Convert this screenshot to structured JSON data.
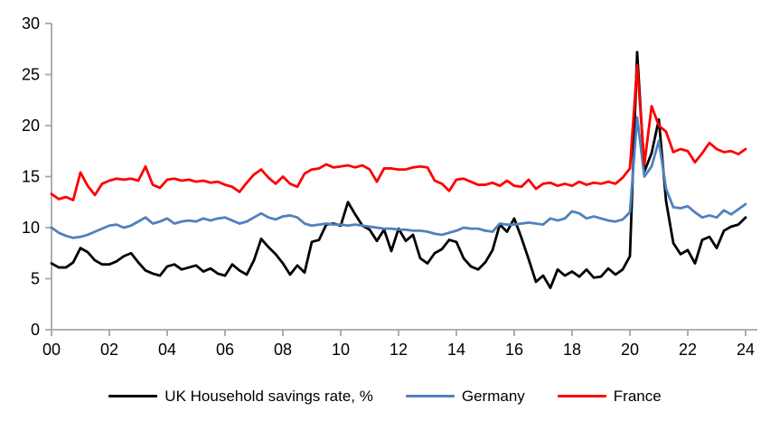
{
  "chart_data": {
    "type": "line",
    "title": "",
    "x_tick_labels": [
      "00",
      "02",
      "04",
      "06",
      "08",
      "10",
      "12",
      "14",
      "16",
      "18",
      "20",
      "22",
      "24"
    ],
    "y_ticks": [
      "0",
      "5",
      "10",
      "15",
      "20",
      "25",
      "30"
    ],
    "ylim": [
      0,
      30
    ],
    "x_start_year": 2000,
    "x_step_years": 0.25,
    "grid": false,
    "legend_position": "bottom",
    "axis_color": "#A6A6A6",
    "tick_label_color": "#000000",
    "series": [
      {
        "name": "UK Household savings rate, %",
        "color": "#000000",
        "values": [
          6.5,
          6.1,
          6.1,
          6.6,
          8.0,
          7.6,
          6.8,
          6.4,
          6.4,
          6.7,
          7.2,
          7.5,
          6.6,
          5.8,
          5.5,
          5.3,
          6.2,
          6.4,
          5.9,
          6.1,
          6.3,
          5.7,
          6.0,
          5.5,
          5.3,
          6.4,
          5.8,
          5.4,
          6.8,
          8.9,
          8.1,
          7.4,
          6.5,
          5.4,
          6.3,
          5.6,
          8.6,
          8.8,
          10.3,
          10.4,
          10.2,
          12.5,
          11.3,
          10.2,
          9.8,
          8.7,
          9.8,
          7.7,
          9.9,
          8.7,
          9.3,
          7.0,
          6.5,
          7.5,
          7.9,
          8.8,
          8.6,
          7.0,
          6.2,
          5.9,
          6.6,
          7.8,
          10.3,
          9.6,
          10.9,
          9.0,
          6.9,
          4.7,
          5.3,
          4.1,
          5.9,
          5.3,
          5.7,
          5.2,
          5.9,
          5.1,
          5.2,
          6.0,
          5.4,
          5.9,
          7.2,
          27.2,
          15.5,
          17.3,
          20.6,
          12.6,
          8.5,
          7.4,
          7.8,
          6.5,
          8.8,
          9.1,
          8.0,
          9.7,
          10.1,
          10.3,
          11.0
        ]
      },
      {
        "name": "Germany",
        "color": "#4F81BD",
        "values": [
          10.0,
          9.5,
          9.2,
          9.0,
          9.1,
          9.3,
          9.6,
          9.9,
          10.2,
          10.3,
          10.0,
          10.2,
          10.6,
          11.0,
          10.4,
          10.6,
          10.9,
          10.4,
          10.6,
          10.7,
          10.6,
          10.9,
          10.7,
          10.9,
          11.0,
          10.7,
          10.4,
          10.6,
          11.0,
          11.4,
          11.0,
          10.8,
          11.1,
          11.2,
          11.0,
          10.4,
          10.2,
          10.3,
          10.4,
          10.3,
          10.3,
          10.2,
          10.3,
          10.2,
          10.1,
          10.0,
          9.9,
          9.9,
          9.8,
          9.8,
          9.7,
          9.7,
          9.6,
          9.4,
          9.3,
          9.5,
          9.7,
          10.0,
          9.9,
          9.9,
          9.7,
          9.6,
          10.4,
          10.3,
          10.3,
          10.4,
          10.5,
          10.4,
          10.3,
          10.9,
          10.7,
          10.9,
          11.6,
          11.4,
          10.9,
          11.1,
          10.9,
          10.7,
          10.6,
          10.8,
          11.5,
          20.8,
          15.0,
          16.0,
          18.5,
          13.8,
          12.0,
          11.9,
          12.1,
          11.5,
          11.0,
          11.2,
          11.0,
          11.7,
          11.3,
          11.8,
          12.3
        ]
      },
      {
        "name": "France",
        "color": "#FF0000",
        "values": [
          13.3,
          12.8,
          13.0,
          12.7,
          15.4,
          14.1,
          13.2,
          14.3,
          14.6,
          14.8,
          14.7,
          14.8,
          14.6,
          16.0,
          14.2,
          13.9,
          14.7,
          14.8,
          14.6,
          14.7,
          14.5,
          14.6,
          14.4,
          14.5,
          14.2,
          14.0,
          13.5,
          14.4,
          15.2,
          15.7,
          14.9,
          14.3,
          15.0,
          14.3,
          14.0,
          15.3,
          15.7,
          15.8,
          16.2,
          15.9,
          16.0,
          16.1,
          15.9,
          16.1,
          15.7,
          14.5,
          15.8,
          15.8,
          15.7,
          15.7,
          15.9,
          16.0,
          15.9,
          14.6,
          14.3,
          13.6,
          14.7,
          14.8,
          14.5,
          14.2,
          14.2,
          14.4,
          14.1,
          14.6,
          14.1,
          14.0,
          14.7,
          13.8,
          14.3,
          14.4,
          14.1,
          14.3,
          14.1,
          14.5,
          14.2,
          14.4,
          14.3,
          14.5,
          14.3,
          14.9,
          15.8,
          25.9,
          16.2,
          21.9,
          20.0,
          19.4,
          17.4,
          17.7,
          17.5,
          16.4,
          17.3,
          18.3,
          17.7,
          17.4,
          17.5,
          17.2,
          17.7
        ]
      }
    ]
  }
}
